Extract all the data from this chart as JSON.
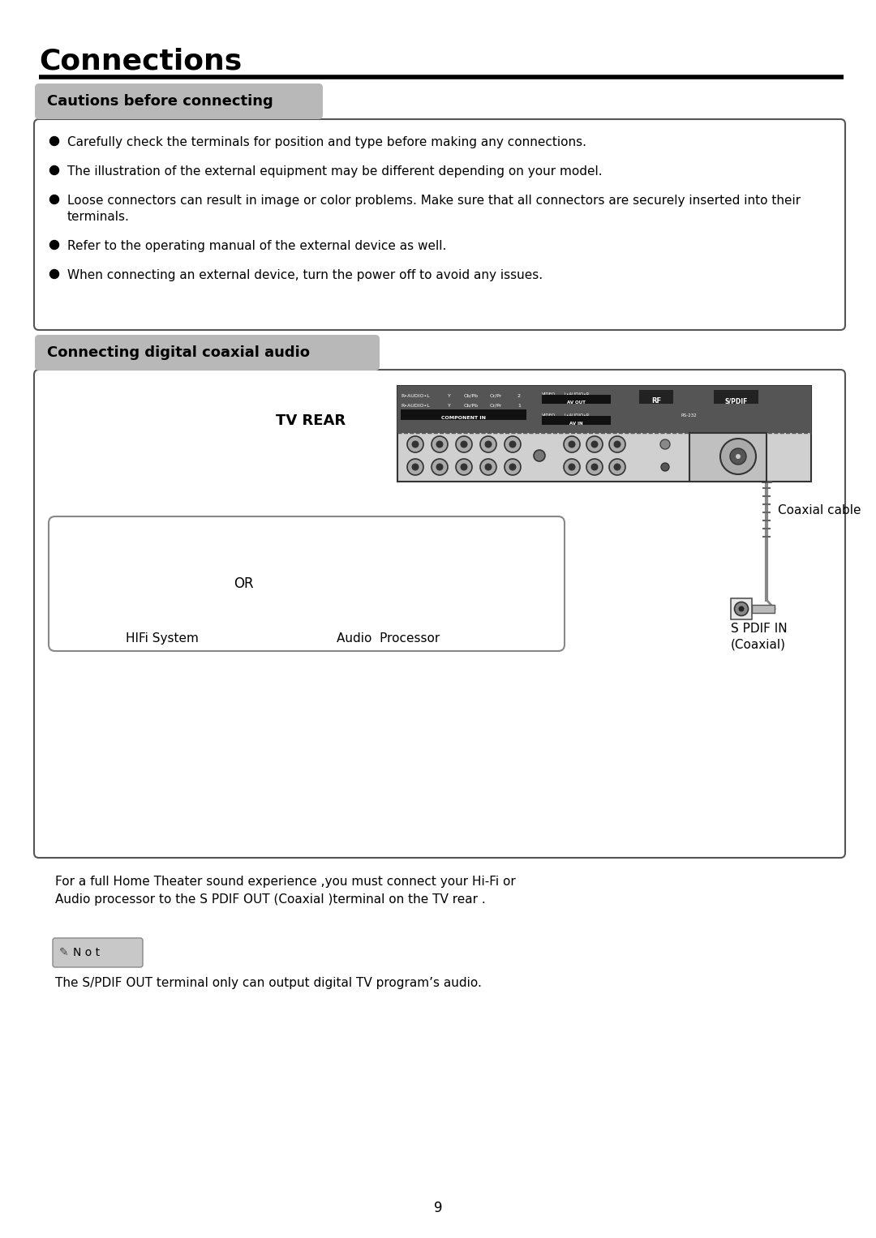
{
  "title": "Connections",
  "section1_title": "Cautions before connecting",
  "section2_title": "Connecting digital coaxial audio",
  "bullet_points": [
    "Carefully check the terminals for position and type before making any connections.",
    "The illustration of the external equipment may be different depending on your model.",
    "Loose connectors can result in image or color problems. Make sure that all connectors are securely inserted into their\nterminals.",
    "Refer to the operating manual of the external device as well.",
    "When connecting an external device, turn the power off to avoid any issues."
  ],
  "tv_rear_label": "TV REAR",
  "or_label": "OR",
  "hifi_label": "HIFi System",
  "audio_label": "Audio  Processor",
  "coaxial_cable_label": "Coaxial cable",
  "spdif_label": "S PDIF IN\n(Coaxial)",
  "desc_text": "For a full Home Theater sound experience ,you must connect your Hi-Fi or\nAudio processor to the S PDIF OUT (Coaxial )terminal on the TV rear .",
  "note_text": "The S/PDIF OUT terminal only can output digital TV program’s audio.",
  "page_number": "9",
  "bg_color": "#ffffff",
  "section_header_bg": "#b8b8b8",
  "note_bg": "#c8c8c8",
  "border_color": "#000000"
}
